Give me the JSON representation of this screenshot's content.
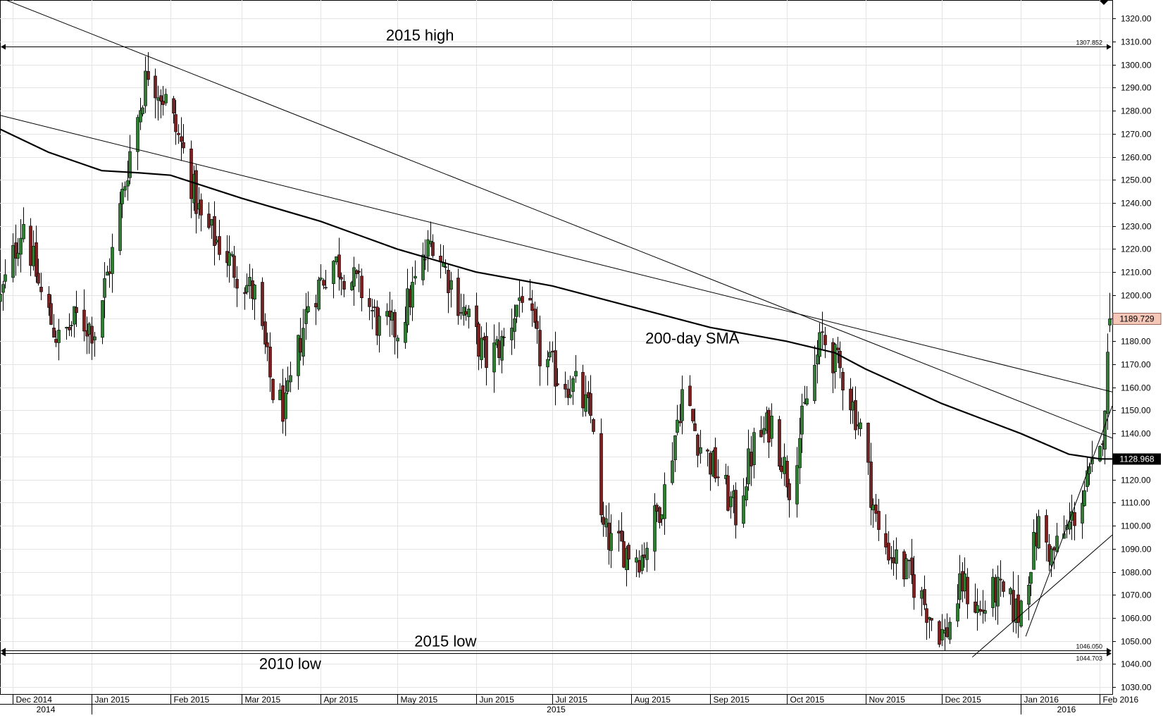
{
  "chart_data": {
    "type": "candlestick",
    "title": "",
    "ylabel": "",
    "ylim": [
      1027,
      1328
    ],
    "ylim_note": "price scale",
    "y_ticks": [
      1030,
      1040,
      1050,
      1060,
      1070,
      1080,
      1090,
      1100,
      1110,
      1120,
      1130,
      1140,
      1150,
      1160,
      1170,
      1180,
      1190,
      1200,
      1210,
      1220,
      1230,
      1240,
      1250,
      1260,
      1270,
      1280,
      1290,
      1300,
      1310,
      1320
    ],
    "y_tick_labels": [
      "1030.00",
      "1040.00",
      "1050.00",
      "1060.00",
      "1070.00",
      "1080.00",
      "1090.00",
      "1100.00",
      "1110.00",
      "1120.00",
      "1130.00",
      "1140.00",
      "1150.00",
      "1160.00",
      "1170.00",
      "1180.00",
      "1190.00",
      "1200.00",
      "1210.00",
      "1220.00",
      "1230.00",
      "1240.00",
      "1250.00",
      "1260.00",
      "1270.00",
      "1280.00",
      "1290.00",
      "1300.00",
      "1310.00",
      "1320.00"
    ],
    "x_range": [
      "2014-11-26",
      "2016-02-06"
    ],
    "month_labels": [
      {
        "date": "2014-12-01",
        "label": "Dec 2014"
      },
      {
        "date": "2015-01-01",
        "label": "Jan 2015"
      },
      {
        "date": "2015-02-01",
        "label": "Feb 2015"
      },
      {
        "date": "2015-03-01",
        "label": "Mar 2015"
      },
      {
        "date": "2015-04-01",
        "label": "Apr 2015"
      },
      {
        "date": "2015-05-01",
        "label": "May 2015"
      },
      {
        "date": "2015-06-01",
        "label": "Jun 2015"
      },
      {
        "date": "2015-07-01",
        "label": "Jul 2015"
      },
      {
        "date": "2015-08-01",
        "label": "Aug 2015"
      },
      {
        "date": "2015-09-01",
        "label": "Sep 2015"
      },
      {
        "date": "2015-10-01",
        "label": "Oct 2015"
      },
      {
        "date": "2015-11-01",
        "label": "Nov 2015"
      },
      {
        "date": "2015-12-01",
        "label": "Dec 2015"
      },
      {
        "date": "2016-01-01",
        "label": "Jan 2016"
      },
      {
        "date": "2016-02-01",
        "label": "Feb 2016"
      }
    ],
    "year_labels": [
      {
        "start": "2014-11-26",
        "end": "2015-01-01",
        "label": "2014"
      },
      {
        "start": "2015-01-01",
        "end": "2016-01-01",
        "label": "2015"
      },
      {
        "start": "2016-01-01",
        "end": "2016-02-06",
        "label": "2016"
      }
    ],
    "price_anchors": [
      {
        "date": "2014-11-26",
        "price": 1198
      },
      {
        "date": "2014-12-05",
        "price": 1232
      },
      {
        "date": "2014-12-12",
        "price": 1200
      },
      {
        "date": "2014-12-19",
        "price": 1180
      },
      {
        "date": "2014-12-26",
        "price": 1190
      },
      {
        "date": "2015-01-02",
        "price": 1185
      },
      {
        "date": "2015-01-09",
        "price": 1218
      },
      {
        "date": "2015-01-16",
        "price": 1262
      },
      {
        "date": "2015-01-23",
        "price": 1298
      },
      {
        "date": "2015-01-30",
        "price": 1284
      },
      {
        "date": "2015-02-06",
        "price": 1262
      },
      {
        "date": "2015-02-13",
        "price": 1232
      },
      {
        "date": "2015-02-20",
        "price": 1222
      },
      {
        "date": "2015-02-27",
        "price": 1210
      },
      {
        "date": "2015-03-06",
        "price": 1200
      },
      {
        "date": "2015-03-13",
        "price": 1158
      },
      {
        "date": "2015-03-18",
        "price": 1150
      },
      {
        "date": "2015-03-27",
        "price": 1197
      },
      {
        "date": "2015-04-06",
        "price": 1215
      },
      {
        "date": "2015-04-17",
        "price": 1202
      },
      {
        "date": "2015-04-24",
        "price": 1186
      },
      {
        "date": "2015-05-01",
        "price": 1185
      },
      {
        "date": "2015-05-15",
        "price": 1225
      },
      {
        "date": "2015-05-22",
        "price": 1205
      },
      {
        "date": "2015-06-05",
        "price": 1172
      },
      {
        "date": "2015-06-12",
        "price": 1180
      },
      {
        "date": "2015-06-19",
        "price": 1202
      },
      {
        "date": "2015-06-26",
        "price": 1174
      },
      {
        "date": "2015-07-03",
        "price": 1165
      },
      {
        "date": "2015-07-10",
        "price": 1160
      },
      {
        "date": "2015-07-17",
        "price": 1145
      },
      {
        "date": "2015-07-20",
        "price": 1100
      },
      {
        "date": "2015-07-24",
        "price": 1092
      },
      {
        "date": "2015-08-05",
        "price": 1087
      },
      {
        "date": "2015-08-14",
        "price": 1115
      },
      {
        "date": "2015-08-21",
        "price": 1158
      },
      {
        "date": "2015-08-28",
        "price": 1135
      },
      {
        "date": "2015-09-04",
        "price": 1122
      },
      {
        "date": "2015-09-11",
        "price": 1105
      },
      {
        "date": "2015-09-18",
        "price": 1135
      },
      {
        "date": "2015-09-25",
        "price": 1145
      },
      {
        "date": "2015-10-02",
        "price": 1118
      },
      {
        "date": "2015-10-09",
        "price": 1155
      },
      {
        "date": "2015-10-15",
        "price": 1182
      },
      {
        "date": "2015-10-23",
        "price": 1165
      },
      {
        "date": "2015-10-30",
        "price": 1142
      },
      {
        "date": "2015-11-06",
        "price": 1096
      },
      {
        "date": "2015-11-13",
        "price": 1085
      },
      {
        "date": "2015-11-20",
        "price": 1075
      },
      {
        "date": "2015-11-27",
        "price": 1060
      },
      {
        "date": "2015-12-02",
        "price": 1052
      },
      {
        "date": "2015-12-09",
        "price": 1075
      },
      {
        "date": "2015-12-16",
        "price": 1062
      },
      {
        "date": "2015-12-22",
        "price": 1072
      },
      {
        "date": "2015-12-31",
        "price": 1062
      },
      {
        "date": "2016-01-08",
        "price": 1100
      },
      {
        "date": "2016-01-13",
        "price": 1087
      },
      {
        "date": "2016-01-20",
        "price": 1100
      },
      {
        "date": "2016-01-27",
        "price": 1118
      },
      {
        "date": "2016-02-01",
        "price": 1130
      },
      {
        "date": "2016-02-03",
        "price": 1155
      },
      {
        "date": "2016-02-04",
        "price": 1170
      },
      {
        "date": "2016-02-05",
        "price": 1190
      }
    ],
    "sma_200_points": [
      {
        "date": "2014-11-26",
        "price": 1272
      },
      {
        "date": "2014-12-15",
        "price": 1262
      },
      {
        "date": "2015-01-05",
        "price": 1254
      },
      {
        "date": "2015-01-20",
        "price": 1253
      },
      {
        "date": "2015-02-01",
        "price": 1252
      },
      {
        "date": "2015-03-01",
        "price": 1242
      },
      {
        "date": "2015-04-01",
        "price": 1232
      },
      {
        "date": "2015-05-01",
        "price": 1220
      },
      {
        "date": "2015-06-01",
        "price": 1210
      },
      {
        "date": "2015-07-01",
        "price": 1204
      },
      {
        "date": "2015-08-01",
        "price": 1195
      },
      {
        "date": "2015-09-01",
        "price": 1186
      },
      {
        "date": "2015-10-01",
        "price": 1180
      },
      {
        "date": "2015-10-20",
        "price": 1175
      },
      {
        "date": "2015-11-01",
        "price": 1168
      },
      {
        "date": "2015-12-01",
        "price": 1153
      },
      {
        "date": "2016-01-01",
        "price": 1140
      },
      {
        "date": "2016-01-20",
        "price": 1131
      },
      {
        "date": "2016-02-01",
        "price": 1129
      },
      {
        "date": "2016-02-06",
        "price": 1128.968
      }
    ],
    "trend_lines": [
      {
        "from": {
          "date": "2014-11-26",
          "price": 1329
        },
        "to": {
          "date": "2016-02-06",
          "price": 1138
        }
      },
      {
        "from": {
          "date": "2014-11-26",
          "price": 1278
        },
        "to": {
          "date": "2016-02-06",
          "price": 1158
        }
      },
      {
        "from": {
          "date": "2015-12-13",
          "price": 1043
        },
        "to": {
          "date": "2016-02-06",
          "price": 1096
        }
      },
      {
        "from": {
          "date": "2016-01-03",
          "price": 1052
        },
        "to": {
          "date": "2016-02-06",
          "price": 1152
        }
      }
    ],
    "horizontal_levels": [
      {
        "name": "2015 high",
        "price": 1307.852,
        "value_label": "1307.852",
        "annotation": "2015 high",
        "annotation_date": "2015-05-10"
      },
      {
        "name": "2015 low",
        "price": 1046.05,
        "value_label": "1046.050",
        "annotation": "2015 low",
        "annotation_date": "2015-05-20"
      },
      {
        "name": "2010 low",
        "price": 1044.703,
        "value_label": "1044.703",
        "annotation": "2010 low",
        "annotation_date": "2015-03-20"
      }
    ],
    "last_price": {
      "price": 1189.729,
      "label": "1189.729",
      "color": "#f4c7b8"
    },
    "sma_label_box": {
      "price": 1128.968,
      "label": "1128.968",
      "color": "#000000"
    },
    "annotations": [
      {
        "text": "200-day SMA",
        "date": "2015-08-25",
        "price": 1179
      }
    ],
    "colors": {
      "up": "#2e7d32",
      "down": "#7b1f1f",
      "grid": "#e4e4e4",
      "line": "#000000"
    }
  }
}
